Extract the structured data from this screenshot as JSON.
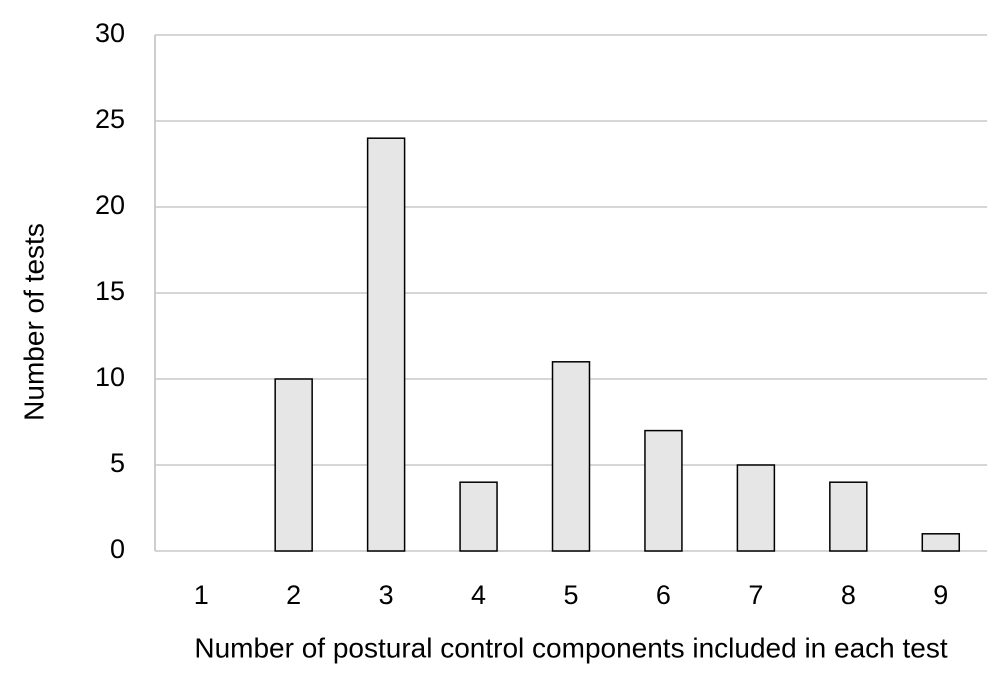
{
  "chart_data": {
    "type": "bar",
    "x_label": "Number of postural control components included in each test",
    "y_label": "Number of tests",
    "categories": [
      "1",
      "2",
      "3",
      "4",
      "5",
      "6",
      "7",
      "8",
      "9"
    ],
    "values": [
      0,
      10,
      24,
      4,
      11,
      7,
      5,
      4,
      1
    ],
    "color": "#e6e6e6",
    "ylim": [
      0,
      30
    ],
    "yticks": [
      0,
      5,
      10,
      15,
      20,
      25,
      30
    ],
    "grid": true
  }
}
